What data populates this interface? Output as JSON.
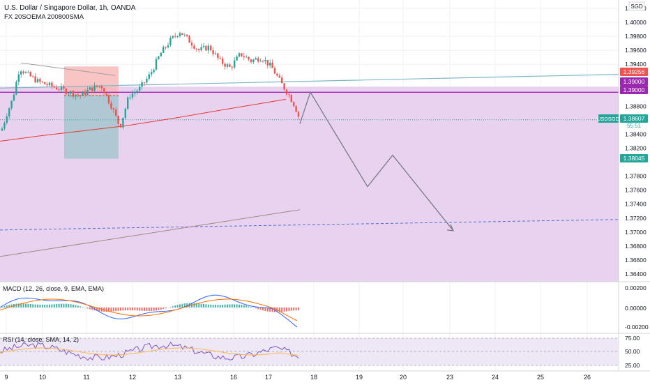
{
  "header": {
    "title": "U.S. Dollar / Singapore Dollar, 1h, OANDA",
    "indicator": "FX 20SOEMA 200800SMA"
  },
  "colors": {
    "up": "#26a69a",
    "down": "#ef5350",
    "zone": "#e1c4ec",
    "purple_line": "#9c27b0",
    "grid": "#eef0f3",
    "axis_text": "#131722",
    "ema_red": "#e53935",
    "projection": "#787b86"
  },
  "price_axis": {
    "currency_tag": "SGD",
    "ticks": [
      "1.40200",
      "1.40000",
      "1.39800",
      "1.39600",
      "1.39400",
      "1.38800",
      "1.38400",
      "1.38200",
      "1.37800",
      "1.37600",
      "1.37400",
      "1.37200",
      "1.37000",
      "1.36800",
      "1.36600",
      "1.36400"
    ],
    "labels": [
      {
        "text": "1.39256",
        "bg": "#ef5350",
        "fg": "#ffffff"
      },
      {
        "text": "1.39000",
        "bg": "#9c27b0",
        "fg": "#ffffff"
      },
      {
        "text": "1.39000",
        "bg": "#9c27b0",
        "fg": "#ffffff"
      },
      {
        "text": "1.38607",
        "bg": "#26a69a",
        "fg": "#ffffff"
      },
      {
        "text": "1.38045",
        "bg": "#26a69a",
        "fg": "#ffffff"
      }
    ],
    "symbol_tag": "USDSGD",
    "countdown": "55:51"
  },
  "time_axis": {
    "labels": [
      "9",
      "10",
      "11",
      "12",
      "13",
      "16",
      "17",
      "18",
      "19",
      "20",
      "23",
      "24",
      "25",
      "26"
    ]
  },
  "macd": {
    "title": "MACD (12, 26, close, 9, EMA, EMA)",
    "ticks": [
      "0.00200",
      "0.00000",
      "-0.00200"
    ]
  },
  "rsi": {
    "title": "RSI (14, close, SMA, 14, 2)",
    "ticks": [
      "75.00",
      "50.00",
      "25.00"
    ]
  },
  "chart_data": {
    "type": "candlestick",
    "symbol": "USDSGD",
    "interval": "1h",
    "ylim": [
      1.363,
      1.4025
    ],
    "last_price": 1.38607,
    "levels": {
      "resistance": 1.39,
      "upper_trendline_end": 1.39256,
      "target_label": 1.38045
    },
    "projection_path": [
      {
        "label": "17",
        "price": 1.3855
      },
      {
        "label": "18",
        "price": 1.39
      },
      {
        "label": "19",
        "price": 1.3765
      },
      {
        "label": "20",
        "price": 1.381
      },
      {
        "label": "23",
        "price": 1.37
      }
    ]
  }
}
